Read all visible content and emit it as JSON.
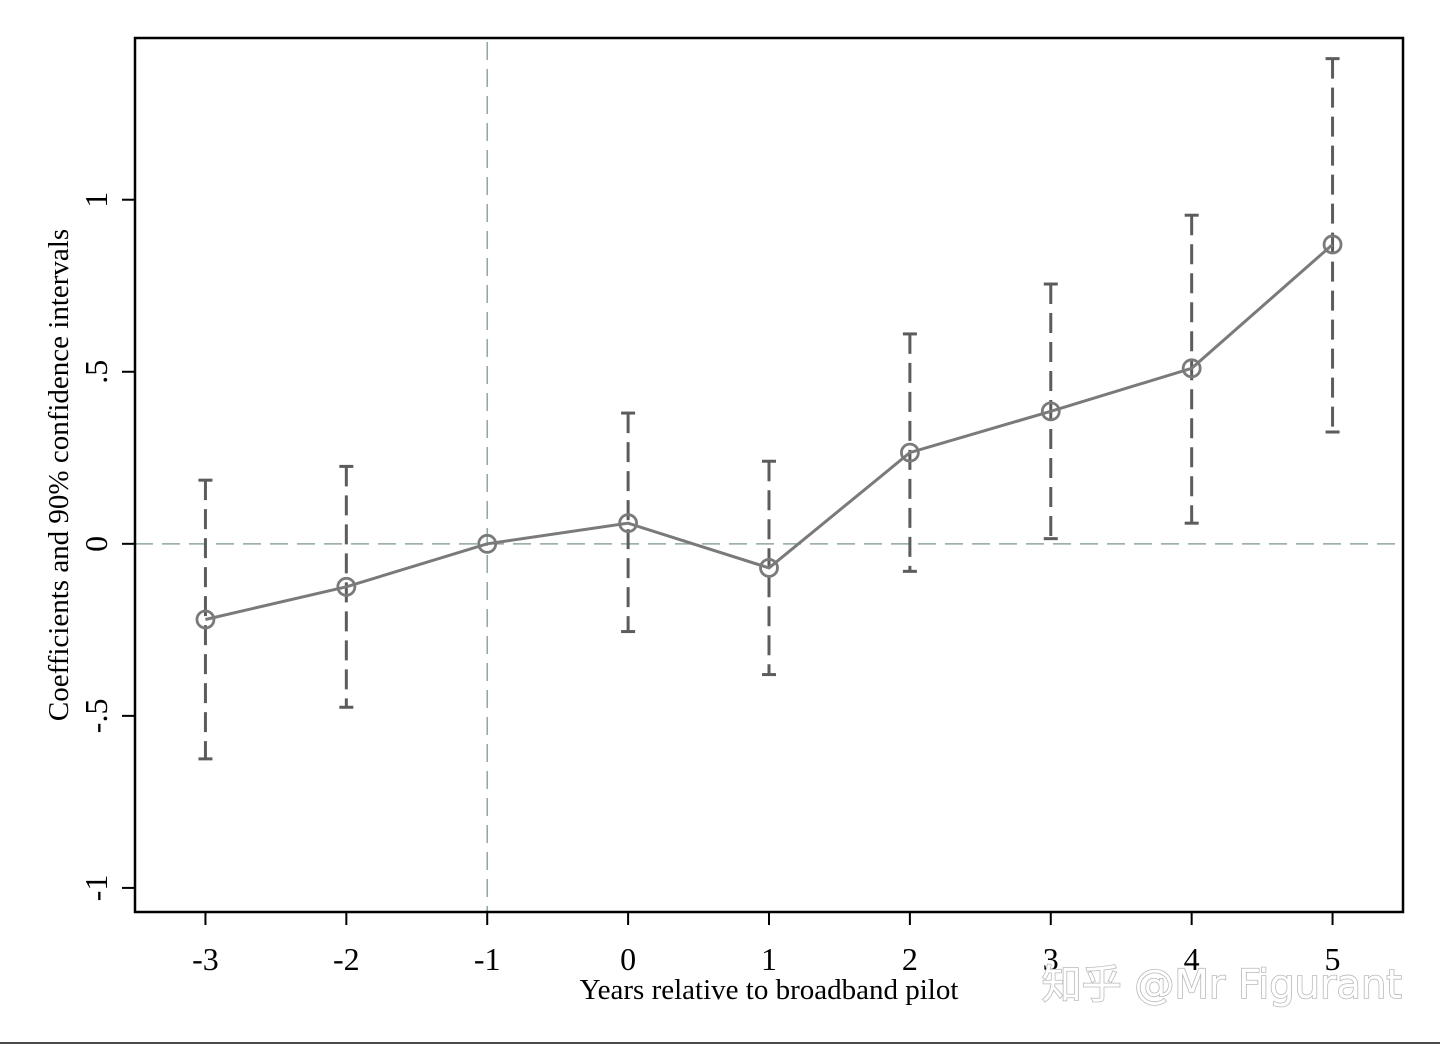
{
  "chart_data": {
    "type": "line",
    "title": "",
    "xlabel": "Years relative to broadband pilot",
    "ylabel": "Coefficients and 90% confidence intervals",
    "x": [
      -3,
      -2,
      -1,
      0,
      1,
      2,
      3,
      4,
      5
    ],
    "x_tick_labels": [
      "-3",
      "-2",
      "-1",
      "0",
      "1",
      "2",
      "3",
      "4",
      "5"
    ],
    "y_ticks": [
      -1,
      -0.5,
      0,
      0.5,
      1
    ],
    "y_tick_labels": [
      "-1",
      "-.5",
      "0",
      ".5",
      "1"
    ],
    "xlim": [
      -3.5,
      5.5
    ],
    "ylim": [
      -1.07,
      1.47
    ],
    "series": [
      {
        "values": [
          -0.22,
          -0.125,
          0.0,
          0.06,
          -0.07,
          0.265,
          0.385,
          0.51,
          0.87
        ],
        "ci_lower": [
          -0.625,
          -0.475,
          null,
          -0.255,
          -0.38,
          -0.08,
          0.015,
          0.06,
          0.325
        ],
        "ci_upper": [
          0.185,
          0.225,
          null,
          0.38,
          0.24,
          0.61,
          0.755,
          0.955,
          1.41
        ]
      }
    ],
    "reference_lines": {
      "x": -1,
      "y": 0
    },
    "grid": false,
    "colors": {
      "series": "#7a7a7a",
      "ci": "#5c5c5c",
      "reference": "#8fa89c",
      "frame": "#000000"
    }
  },
  "watermark": "知乎 @Mr Figurant"
}
